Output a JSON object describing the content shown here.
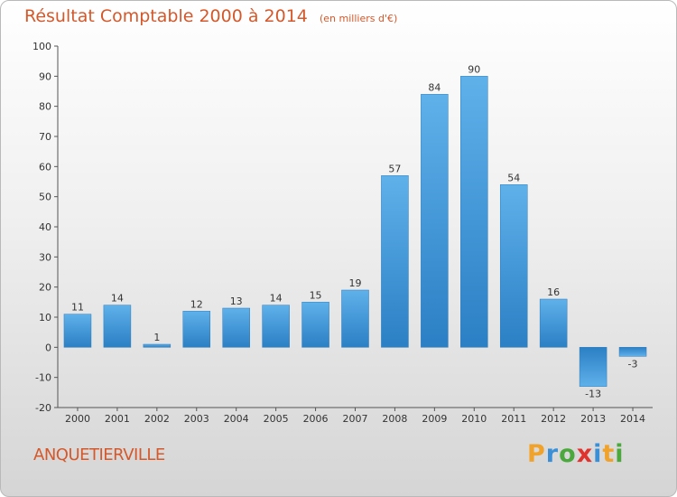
{
  "title": "Résultat Comptable 2000 à 2014",
  "unit_note": "(en milliers d'€)",
  "commune": "ANQUETIERVILLE",
  "logo": {
    "letters": [
      "P",
      "r",
      "o",
      "x",
      "i",
      "t",
      "i"
    ],
    "colors": [
      "#f0a22a",
      "#3a8fd6",
      "#4aa83c",
      "#e0332d",
      "#3a8fd6",
      "#f0a22a",
      "#4aa83c"
    ]
  },
  "colors": {
    "accent": "#d5582a",
    "bar_light": "#5fb1ea",
    "bar_dark": "#2b7fc4"
  },
  "chart_data": {
    "type": "bar",
    "categories": [
      "2000",
      "2001",
      "2002",
      "2003",
      "2004",
      "2005",
      "2006",
      "2007",
      "2008",
      "2009",
      "2010",
      "2011",
      "2012",
      "2013",
      "2014"
    ],
    "values": [
      11,
      14,
      1,
      12,
      13,
      14,
      15,
      19,
      57,
      84,
      90,
      54,
      16,
      -13,
      -3
    ],
    "data_labels": [
      "11",
      "14",
      "1",
      "12",
      "13",
      "14",
      "15",
      "19",
      "57",
      "84",
      "90",
      "54",
      "16",
      "-13",
      "-3"
    ],
    "ylim": [
      -20,
      100
    ],
    "yticks": [
      -20,
      -10,
      0,
      10,
      20,
      30,
      40,
      50,
      60,
      70,
      80,
      90,
      100
    ],
    "grid": false,
    "legend": "none"
  }
}
